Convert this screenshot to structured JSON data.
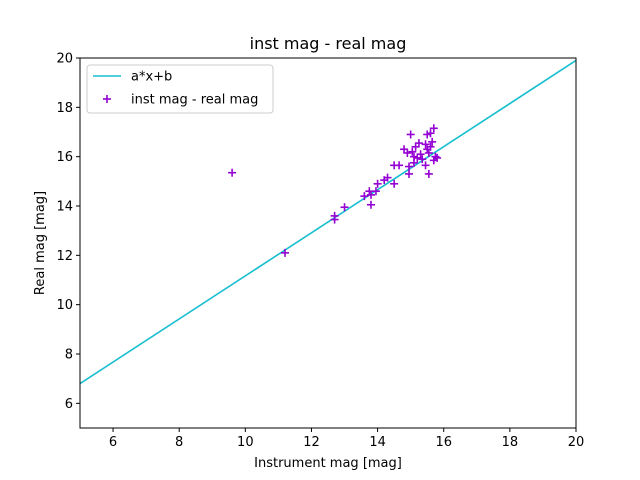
{
  "chart_data": {
    "type": "scatter",
    "title": "inst mag - real mag",
    "xlabel": "Instrument mag [mag]",
    "ylabel": "Real mag [mag]",
    "xlim": [
      5,
      20
    ],
    "ylim": [
      5,
      20
    ],
    "xticks": [
      "6",
      "8",
      "10",
      "12",
      "14",
      "16",
      "18",
      "20"
    ],
    "yticks": [
      "6",
      "8",
      "10",
      "12",
      "14",
      "16",
      "18",
      "20"
    ],
    "grid": false,
    "legend_placement": "top-left",
    "series": [
      {
        "name": "a*x+b",
        "kind": "line",
        "color": "#17becf",
        "x": [
          5,
          20
        ],
        "y": [
          6.8,
          19.9
        ]
      },
      {
        "name": "inst mag - real mag",
        "kind": "scatter",
        "marker": "+",
        "color": "#9400d3",
        "points": [
          [
            9.6,
            15.35
          ],
          [
            11.2,
            12.1
          ],
          [
            12.7,
            13.6
          ],
          [
            12.7,
            13.45
          ],
          [
            13.0,
            13.95
          ],
          [
            13.6,
            14.4
          ],
          [
            13.75,
            14.6
          ],
          [
            13.8,
            14.05
          ],
          [
            13.8,
            14.45
          ],
          [
            13.95,
            14.6
          ],
          [
            14.0,
            14.9
          ],
          [
            14.2,
            15.05
          ],
          [
            14.3,
            15.15
          ],
          [
            14.5,
            14.9
          ],
          [
            14.5,
            15.65
          ],
          [
            14.65,
            15.65
          ],
          [
            14.8,
            16.3
          ],
          [
            14.9,
            16.15
          ],
          [
            14.95,
            15.3
          ],
          [
            14.95,
            15.6
          ],
          [
            15.0,
            16.9
          ],
          [
            15.05,
            16.2
          ],
          [
            15.1,
            15.75
          ],
          [
            15.1,
            16.0
          ],
          [
            15.15,
            16.4
          ],
          [
            15.2,
            15.95
          ],
          [
            15.25,
            16.55
          ],
          [
            15.3,
            16.1
          ],
          [
            15.35,
            15.9
          ],
          [
            15.45,
            16.5
          ],
          [
            15.45,
            15.65
          ],
          [
            15.5,
            16.9
          ],
          [
            15.5,
            16.3
          ],
          [
            15.55,
            16.15
          ],
          [
            15.55,
            15.3
          ],
          [
            15.6,
            16.95
          ],
          [
            15.6,
            16.4
          ],
          [
            15.65,
            16.6
          ],
          [
            15.7,
            17.15
          ],
          [
            15.7,
            15.85
          ],
          [
            15.75,
            16.0
          ],
          [
            15.8,
            15.95
          ]
        ]
      }
    ]
  }
}
